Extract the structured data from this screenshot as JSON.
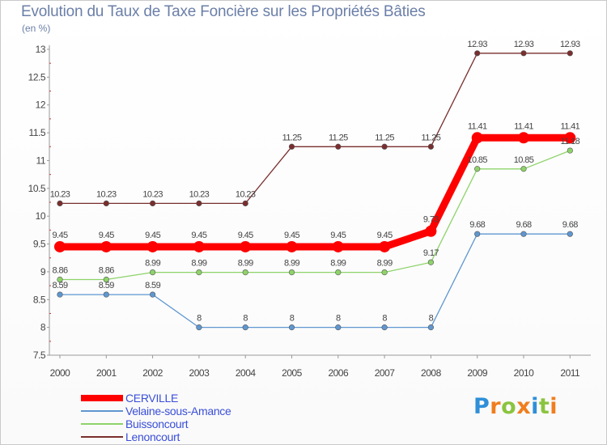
{
  "title": "Evolution du Taux de Taxe Foncière sur les Propriétés Bâties",
  "unit_label": "(en %)",
  "logo": {
    "letters": [
      "P",
      "r",
      "o",
      "x",
      "i",
      "t",
      "i"
    ],
    "colors": [
      "#2f8fd8",
      "#f07e1e",
      "#8bc43f",
      "#f07e1e",
      "#2f8fd8",
      "#8bc43f",
      "#f07e1e"
    ]
  },
  "chart_data": {
    "type": "line",
    "title": "Evolution du Taux de Taxe Foncière sur les Propriétés Bâties",
    "ylabel": "(en %)",
    "x": [
      "2000",
      "2001",
      "2002",
      "2003",
      "2004",
      "2005",
      "2006",
      "2007",
      "2008",
      "2009",
      "2010",
      "2011"
    ],
    "yticks": [
      "7.5",
      "8",
      "8.5",
      "9",
      "9.5",
      "10",
      "10.5",
      "11",
      "11.5",
      "12",
      "12.5",
      "13"
    ],
    "ylim": [
      7.5,
      13
    ],
    "legend_position": "bottom-left",
    "series": [
      {
        "name": "CERVILLE",
        "color": "#ff0000",
        "values": [
          9.45,
          9.45,
          9.45,
          9.45,
          9.45,
          9.45,
          9.45,
          9.45,
          9.73,
          11.41,
          11.41,
          11.41
        ],
        "labels": [
          "9.45",
          "9.45",
          "9.45",
          "9.45",
          "9.45",
          "9.45",
          "9.45",
          "9.45",
          "9.73",
          "11.41",
          "11.41",
          "11.41"
        ]
      },
      {
        "name": "Velaine-sous-Amance",
        "color": "#5f97d0",
        "values": [
          8.59,
          8.59,
          8.59,
          8,
          8,
          8,
          8,
          8,
          8,
          9.68,
          9.68,
          9.68
        ],
        "labels": [
          "8.59",
          "8.59",
          "8.59",
          "8",
          "8",
          "8",
          "8",
          "8",
          "8",
          "9.68",
          "9.68",
          "9.68"
        ]
      },
      {
        "name": "Buissoncourt",
        "color": "#8ed36a",
        "values": [
          8.86,
          8.86,
          8.99,
          8.99,
          8.99,
          8.99,
          8.99,
          8.99,
          9.17,
          10.85,
          10.85,
          11.18
        ],
        "labels": [
          "8.86",
          "8.86",
          "8.99",
          "8.99",
          "8.99",
          "8.99",
          "8.99",
          "8.99",
          "9.17",
          "10.85",
          "10.85",
          "11.18"
        ]
      },
      {
        "name": "Lenoncourt",
        "color": "#7a2e2e",
        "values": [
          10.23,
          10.23,
          10.23,
          10.23,
          10.23,
          11.25,
          11.25,
          11.25,
          11.25,
          12.93,
          12.93,
          12.93
        ],
        "labels": [
          "10.23",
          "10.23",
          "10.23",
          "10.23",
          "10.23",
          "11.25",
          "11.25",
          "11.25",
          "11.25",
          "12.93",
          "12.93",
          "12.93"
        ]
      }
    ]
  }
}
